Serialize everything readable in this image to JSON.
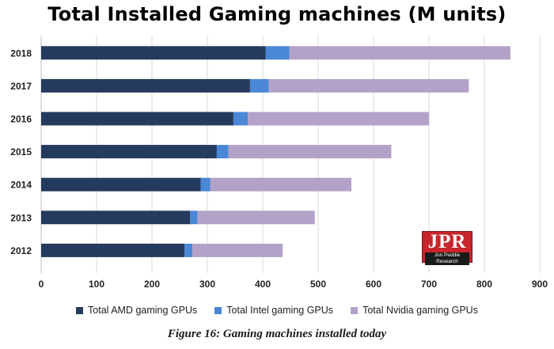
{
  "title": "Total Installed Gaming machines (M units)",
  "caption": "Figure 16: Gaming machines installed today",
  "logo": {
    "main": "JPR",
    "sub": "Jon Peddie Research"
  },
  "colors": {
    "amd": "#243a5e",
    "intel": "#4a87d6",
    "nvidia": "#b3a2c8",
    "grid": "#d9d9d9"
  },
  "chart_data": {
    "type": "bar",
    "orientation": "horizontal",
    "stacked": true,
    "title": "Total Installed Gaming machines (M units)",
    "categories": [
      "2018",
      "2017",
      "2016",
      "2015",
      "2014",
      "2013",
      "2012"
    ],
    "series": [
      {
        "name": "Total AMD gaming GPUs",
        "values": [
          405,
          377,
          347,
          317,
          288,
          269,
          259
        ]
      },
      {
        "name": "Total Intel gaming GPUs",
        "values": [
          43,
          34,
          26,
          21,
          17,
          13,
          14
        ]
      },
      {
        "name": "Total Nvidia gaming GPUs",
        "values": [
          399,
          361,
          327,
          294,
          255,
          212,
          163
        ]
      }
    ],
    "xlim": [
      0,
      900
    ],
    "xticks": [
      "0",
      "100",
      "200",
      "300",
      "400",
      "500",
      "600",
      "700",
      "800",
      "900"
    ],
    "grid": true,
    "legend_position": "bottom"
  }
}
